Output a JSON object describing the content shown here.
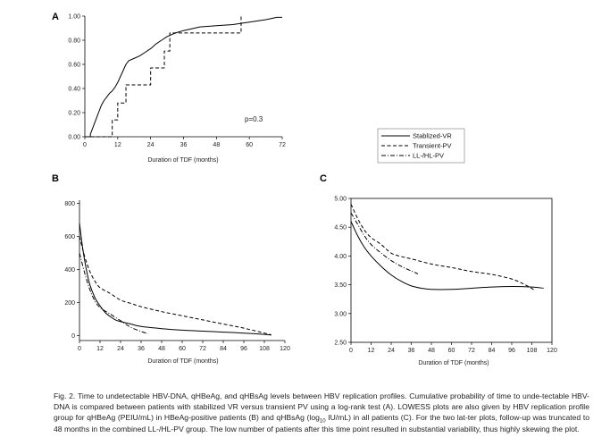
{
  "chart_data": [
    {
      "id": "A",
      "type": "line",
      "step": true,
      "panel_label": "A",
      "xlabel": "Duration of TDF (months)",
      "ylabel": "",
      "xlim": [
        0,
        72
      ],
      "ylim": [
        0,
        1
      ],
      "xticks": [
        0,
        12,
        24,
        36,
        48,
        60,
        72
      ],
      "yticks": [
        0,
        0.2,
        0.4,
        0.6,
        0.8,
        1.0
      ],
      "ytick_labels": [
        "0.00",
        "0.20",
        "0.40",
        "0.60",
        "0.80",
        "1.00"
      ],
      "annotation": "p=0.3",
      "series": [
        {
          "name": "Stablized-VR",
          "style": "solid",
          "points": [
            [
              0,
              0
            ],
            [
              2,
              0
            ],
            [
              2,
              0.02
            ],
            [
              3,
              0.08
            ],
            [
              4,
              0.14
            ],
            [
              5,
              0.2
            ],
            [
              6,
              0.26
            ],
            [
              7,
              0.3
            ],
            [
              8,
              0.33
            ],
            [
              9,
              0.36
            ],
            [
              10,
              0.38
            ],
            [
              11,
              0.41
            ],
            [
              12,
              0.45
            ],
            [
              13,
              0.5
            ],
            [
              14,
              0.55
            ],
            [
              15,
              0.6
            ],
            [
              16,
              0.63
            ],
            [
              18,
              0.65
            ],
            [
              20,
              0.67
            ],
            [
              22,
              0.7
            ],
            [
              24,
              0.73
            ],
            [
              26,
              0.77
            ],
            [
              28,
              0.8
            ],
            [
              30,
              0.83
            ],
            [
              33,
              0.86
            ],
            [
              36,
              0.88
            ],
            [
              42,
              0.91
            ],
            [
              48,
              0.92
            ],
            [
              54,
              0.93
            ],
            [
              60,
              0.95
            ],
            [
              66,
              0.97
            ],
            [
              68,
              0.98
            ],
            [
              70,
              0.99
            ],
            [
              72,
              0.99
            ]
          ]
        },
        {
          "name": "Transient-PV",
          "style": "dash",
          "points": [
            [
              0,
              0
            ],
            [
              10,
              0
            ],
            [
              10,
              0.14
            ],
            [
              12,
              0.14
            ],
            [
              12,
              0.28
            ],
            [
              15,
              0.28
            ],
            [
              15,
              0.43
            ],
            [
              24,
              0.43
            ],
            [
              24,
              0.57
            ],
            [
              29,
              0.57
            ],
            [
              29,
              0.71
            ],
            [
              31,
              0.71
            ],
            [
              31,
              0.86
            ],
            [
              57,
              0.86
            ],
            [
              57,
              1.0
            ]
          ]
        }
      ]
    },
    {
      "id": "B",
      "type": "line",
      "panel_label": "B",
      "xlabel": "Duration of TDF (months)",
      "ylabel": "",
      "xlim": [
        0,
        120
      ],
      "ylim": [
        -30,
        820
      ],
      "xticks": [
        0,
        12,
        24,
        36,
        48,
        60,
        72,
        84,
        96,
        108,
        120
      ],
      "yticks": [
        0,
        200,
        400,
        600,
        800
      ],
      "ytick_labels": [
        "0",
        "200",
        "400",
        "600",
        "800"
      ],
      "series": [
        {
          "name": "Stablized-VR",
          "style": "solid",
          "points": [
            [
              0,
              680
            ],
            [
              2,
              520
            ],
            [
              4,
              400
            ],
            [
              6,
              310
            ],
            [
              9,
              230
            ],
            [
              12,
              180
            ],
            [
              15,
              140
            ],
            [
              18,
              115
            ],
            [
              21,
              95
            ],
            [
              24,
              85
            ],
            [
              30,
              70
            ],
            [
              36,
              55
            ],
            [
              48,
              42
            ],
            [
              60,
              33
            ],
            [
              72,
              27
            ],
            [
              84,
              21
            ],
            [
              96,
              15
            ],
            [
              108,
              7
            ],
            [
              112,
              3
            ]
          ]
        },
        {
          "name": "Transient-PV",
          "style": "dash",
          "points": [
            [
              0,
              600
            ],
            [
              3,
              480
            ],
            [
              6,
              390
            ],
            [
              9,
              330
            ],
            [
              12,
              290
            ],
            [
              18,
              255
            ],
            [
              24,
              215
            ],
            [
              30,
              195
            ],
            [
              36,
              175
            ],
            [
              48,
              145
            ],
            [
              60,
              120
            ],
            [
              72,
              95
            ],
            [
              84,
              70
            ],
            [
              96,
              45
            ],
            [
              108,
              15
            ],
            [
              112,
              5
            ]
          ]
        },
        {
          "name": "LL-/HL-PV",
          "style": "dashdot",
          "points": [
            [
              0,
              500
            ],
            [
              3,
              380
            ],
            [
              6,
              280
            ],
            [
              9,
              210
            ],
            [
              12,
              170
            ],
            [
              18,
              130
            ],
            [
              24,
              90
            ],
            [
              30,
              50
            ],
            [
              36,
              25
            ],
            [
              40,
              12
            ]
          ]
        }
      ]
    },
    {
      "id": "C",
      "type": "line",
      "panel_label": "C",
      "xlabel": "Duration of TDF (months)",
      "ylabel": "",
      "xlim": [
        0,
        120
      ],
      "ylim": [
        2.5,
        5.0
      ],
      "xticks": [
        0,
        12,
        24,
        36,
        48,
        60,
        72,
        84,
        96,
        108,
        120
      ],
      "yticks": [
        2.5,
        3.0,
        3.5,
        4.0,
        4.5,
        5.0
      ],
      "ytick_labels": [
        "2.50",
        "3.00",
        "3.50",
        "4.00",
        "4.50",
        "5.00"
      ],
      "series": [
        {
          "name": "Stablized-VR",
          "style": "solid",
          "points": [
            [
              0,
              4.6
            ],
            [
              4,
              4.35
            ],
            [
              8,
              4.15
            ],
            [
              12,
              4.0
            ],
            [
              18,
              3.82
            ],
            [
              24,
              3.67
            ],
            [
              30,
              3.56
            ],
            [
              36,
              3.48
            ],
            [
              42,
              3.44
            ],
            [
              48,
              3.42
            ],
            [
              60,
              3.42
            ],
            [
              72,
              3.44
            ],
            [
              84,
              3.46
            ],
            [
              96,
              3.47
            ],
            [
              108,
              3.46
            ],
            [
              115,
              3.44
            ]
          ]
        },
        {
          "name": "Transient-PV",
          "style": "dash",
          "points": [
            [
              0,
              4.9
            ],
            [
              4,
              4.65
            ],
            [
              8,
              4.45
            ],
            [
              12,
              4.32
            ],
            [
              18,
              4.2
            ],
            [
              24,
              4.05
            ],
            [
              30,
              3.99
            ],
            [
              36,
              3.95
            ],
            [
              48,
              3.86
            ],
            [
              60,
              3.8
            ],
            [
              72,
              3.73
            ],
            [
              84,
              3.68
            ],
            [
              96,
              3.6
            ],
            [
              104,
              3.5
            ],
            [
              110,
              3.4
            ]
          ]
        },
        {
          "name": "LL-/HL-PV",
          "style": "dashdot",
          "points": [
            [
              0,
              4.75
            ],
            [
              4,
              4.55
            ],
            [
              8,
              4.35
            ],
            [
              12,
              4.2
            ],
            [
              18,
              4.05
            ],
            [
              24,
              3.92
            ],
            [
              30,
              3.82
            ],
            [
              36,
              3.74
            ],
            [
              40,
              3.69
            ]
          ]
        }
      ]
    }
  ],
  "legend": {
    "entries": [
      {
        "name": "Stablized-VR",
        "style": "solid"
      },
      {
        "name": "Transient-PV",
        "style": "dash"
      },
      {
        "name": "LL-/HL-PV",
        "style": "dashdot"
      }
    ]
  },
  "caption": {
    "part1": "Fig. 2. Time to undetectable HBV-DNA, qHBeAg, and qHBsAg levels between HBV replication profiles. Cumulative probability of time to unde-tectable HBV-DNA is compared between patients with stabilized VR versus transient PV using a log-rank test (A). LOWESS plots are also given by HBV replication profile group for qHBeAg (PEIU/mL) in HBeAg-positive patients (B) and qHBsAg (log",
    "sub": "10",
    "part2": " IU/mL) in all patients (C). For the two lat-ter plots, follow-up was truncated to 48 months in the combined LL-/HL-PV group. The low number of patients after this time point resulted in substantial variability, thus highly skewing the plot."
  }
}
